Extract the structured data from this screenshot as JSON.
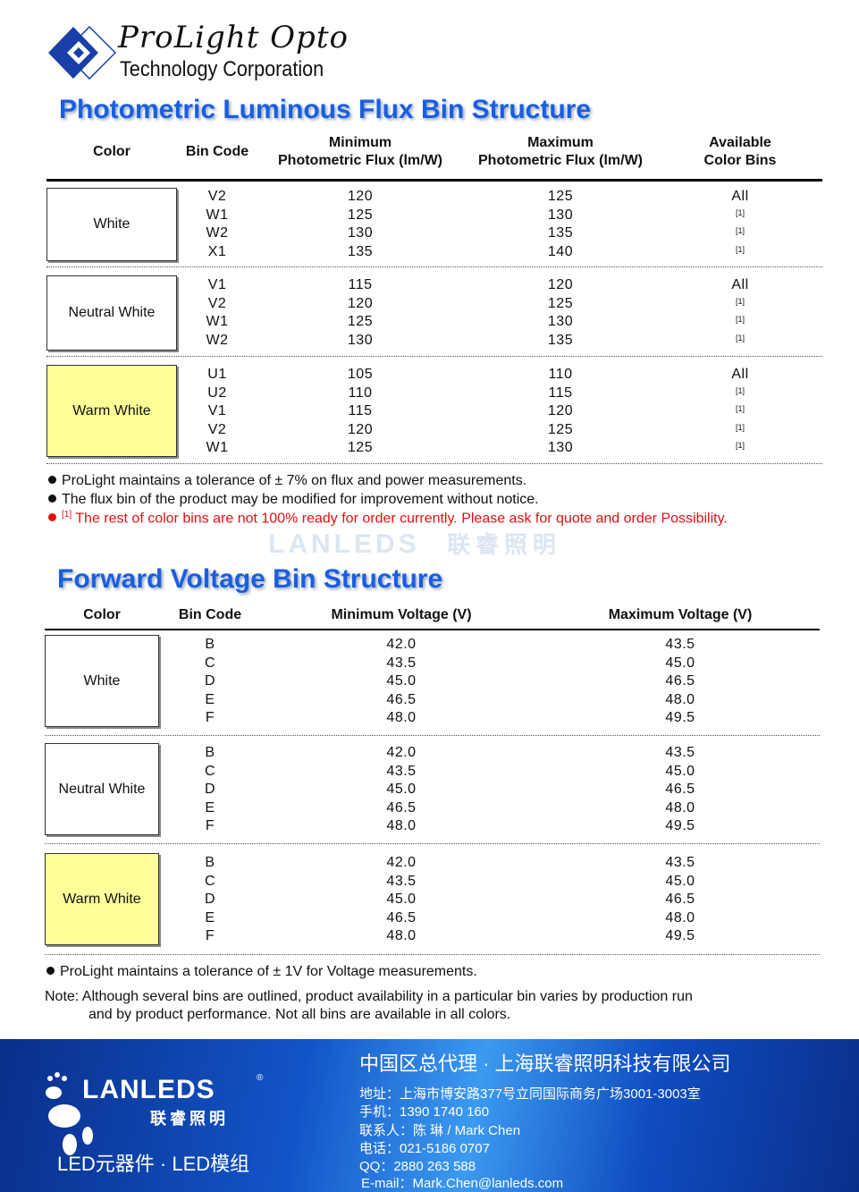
{
  "header": {
    "logo_line1": "ProLight Opto",
    "logo_line2": "Technology Corporation"
  },
  "flux": {
    "title": "Photometric Luminous Flux Bin Structure",
    "headers": {
      "color": "Color",
      "bin": "Bin Code",
      "min": "Minimum\nPhotometric Flux (lm/W)",
      "max": "Maximum\nPhotometric Flux (lm/W)",
      "avail": "Available\nColor Bins"
    },
    "groups": [
      {
        "color": "White",
        "fill": "#ffffff",
        "rows": [
          [
            "V2",
            "120",
            "125",
            "All"
          ],
          [
            "W1",
            "125",
            "130",
            "[1]"
          ],
          [
            "W2",
            "130",
            "135",
            "[1]"
          ],
          [
            "X1",
            "135",
            "140",
            "[1]"
          ]
        ]
      },
      {
        "color": "Neutral White",
        "fill": "#ffffff",
        "rows": [
          [
            "V1",
            "115",
            "120",
            "All"
          ],
          [
            "V2",
            "120",
            "125",
            "[1]"
          ],
          [
            "W1",
            "125",
            "130",
            "[1]"
          ],
          [
            "W2",
            "130",
            "135",
            "[1]"
          ]
        ]
      },
      {
        "color": "Warm White",
        "fill": "#ffff99",
        "rows": [
          [
            "U1",
            "105",
            "110",
            "All"
          ],
          [
            "U2",
            "110",
            "115",
            "[1]"
          ],
          [
            "V1",
            "115",
            "120",
            "[1]"
          ],
          [
            "V2",
            "120",
            "125",
            "[1]"
          ],
          [
            "W1",
            "125",
            "130",
            "[1]"
          ]
        ]
      }
    ],
    "notes": [
      "ProLight maintains a tolerance of ± 7% on flux and power measurements.",
      "The flux bin of the product may be modified for improvement without notice."
    ],
    "red_note_ref": "[1]",
    "red_note": "The rest of color bins are not 100% ready for order currently. Please ask for quote and order Possibility."
  },
  "watermark": {
    "text": "LANLEDS",
    "cn": "联睿照明"
  },
  "voltage": {
    "title": "Forward Voltage Bin Structure",
    "headers": {
      "color": "Color",
      "bin": "Bin Code",
      "min": "Minimum Voltage (V)",
      "max": "Maximum Voltage (V)"
    },
    "groups": [
      {
        "color": "White",
        "fill": "#ffffff",
        "rows": [
          [
            "B",
            "42.0",
            "43.5"
          ],
          [
            "C",
            "43.5",
            "45.0"
          ],
          [
            "D",
            "45.0",
            "46.5"
          ],
          [
            "E",
            "46.5",
            "48.0"
          ],
          [
            "F",
            "48.0",
            "49.5"
          ]
        ]
      },
      {
        "color": "Neutral White",
        "fill": "#ffffff",
        "rows": [
          [
            "B",
            "42.0",
            "43.5"
          ],
          [
            "C",
            "43.5",
            "45.0"
          ],
          [
            "D",
            "45.0",
            "46.5"
          ],
          [
            "E",
            "46.5",
            "48.0"
          ],
          [
            "F",
            "48.0",
            "49.5"
          ]
        ]
      },
      {
        "color": "Warm White",
        "fill": "#ffff99",
        "rows": [
          [
            "B",
            "42.0",
            "43.5"
          ],
          [
            "C",
            "43.5",
            "45.0"
          ],
          [
            "D",
            "45.0",
            "46.5"
          ],
          [
            "E",
            "46.5",
            "48.0"
          ],
          [
            "F",
            "48.0",
            "49.5"
          ]
        ]
      }
    ],
    "note": "ProLight maintains a tolerance of ± 1V for Voltage measurements.",
    "note2_line1": "Note: Although several bins are outlined, product availability in a particular bin varies by production run",
    "note2_line2": "and by product performance. Not all bins are available in all colors."
  },
  "footer": {
    "brand": "LANLEDS",
    "brand_cn": "联睿照明",
    "reg": "®",
    "tagline": "LED元器件 · LED模组",
    "company": "中国区总代理 · 上海联睿照明科技有限公司",
    "address": "地址：上海市博安路377号立同国际商务广场3001-3003室",
    "mobile": "手机：1390 1740 160",
    "contact": "联系人：陈 琳 / Mark Chen",
    "phone": "电话：021-5186 0707",
    "qq": "QQ：2880 263 588",
    "email": "E-mail：Mark.Chen@lanleds.com"
  }
}
